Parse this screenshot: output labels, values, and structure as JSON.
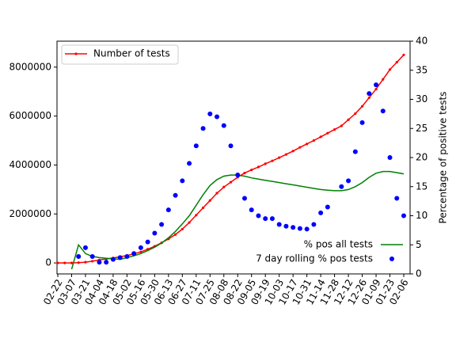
{
  "chart_data": {
    "type": "line",
    "categories": [
      "02-22",
      null,
      "03-07",
      null,
      "03-21",
      null,
      "04-04",
      null,
      "04-18",
      null,
      "05-02",
      null,
      "05-16",
      null,
      "05-30",
      null,
      "06-13",
      null,
      "06-27",
      null,
      "07-11",
      null,
      "07-25",
      null,
      "08-08",
      null,
      "08-22",
      null,
      "09-05",
      null,
      "09-19",
      null,
      "10-03",
      null,
      "10-17",
      null,
      "10-31",
      null,
      "11-14",
      null,
      "11-28",
      null,
      "12-12",
      null,
      "12-26",
      null,
      "01-09",
      null,
      "01-23",
      null,
      "02-06"
    ],
    "y2label": "Percentage of positive tests",
    "ylim": [
      -450000,
      9060000
    ],
    "yticks": [
      0,
      2000000,
      4000000,
      6000000,
      8000000
    ],
    "y2lim": [
      0,
      40
    ],
    "y2ticks": [
      0,
      5,
      10,
      15,
      20,
      25,
      30,
      35,
      40
    ],
    "grid": false,
    "series": [
      {
        "name": "Number of tests",
        "color": "#ff0000",
        "line": true,
        "marker": true,
        "legend": "upper left",
        "values": [
          0,
          0,
          0,
          10000,
          30000,
          70000,
          120000,
          160000,
          200000,
          250000,
          300000,
          370000,
          450000,
          560000,
          680000,
          820000,
          980000,
          1160000,
          1380000,
          1650000,
          1950000,
          2250000,
          2550000,
          2850000,
          3100000,
          3300000,
          3500000,
          3670000,
          3800000,
          3920000,
          4050000,
          4170000,
          4300000,
          4430000,
          4570000,
          4720000,
          4860000,
          5000000,
          5150000,
          5300000,
          5450000,
          5600000,
          5850000,
          6100000,
          6400000,
          6750000,
          7100000,
          7500000,
          7900000,
          8200000,
          8500000
        ]
      },
      {
        "name": "% pos all tests",
        "color": "#008000",
        "line": true,
        "marker": false,
        "legend": "lower right",
        "axis": "y2",
        "values": [
          null,
          null,
          0.8,
          5,
          3.5,
          3,
          2.8,
          2.7,
          2.6,
          2.5,
          2.8,
          3.1,
          3.5,
          4,
          4.6,
          5.3,
          6.2,
          7.3,
          8.6,
          10,
          11.8,
          13.6,
          15.2,
          16.2,
          16.8,
          17,
          17,
          16.8,
          16.5,
          16.3,
          16.1,
          15.9,
          15.7,
          15.5,
          15.3,
          15.1,
          14.9,
          14.7,
          14.5,
          14.4,
          14.3,
          14.3,
          14.5,
          15,
          15.7,
          16.6,
          17.3,
          17.6,
          17.6,
          17.4,
          17.2
        ]
      },
      {
        "name": "7 day rolling % pos tests",
        "color": "#0000ff",
        "line": false,
        "marker": true,
        "legend": "lower right",
        "axis": "y2",
        "values": [
          null,
          null,
          null,
          3,
          4.5,
          3,
          2,
          2,
          2.5,
          2.8,
          3,
          3.5,
          4.5,
          5.5,
          7,
          8.5,
          11,
          13.5,
          16,
          19,
          22,
          25,
          27.5,
          27,
          25.5,
          22,
          17,
          13,
          11,
          10,
          9.5,
          9.5,
          8.5,
          8.2,
          8,
          7.8,
          7.7,
          8.5,
          10.5,
          11.5,
          null,
          15,
          16,
          21,
          26,
          31,
          32.5,
          28,
          20,
          13,
          10
        ]
      }
    ]
  }
}
